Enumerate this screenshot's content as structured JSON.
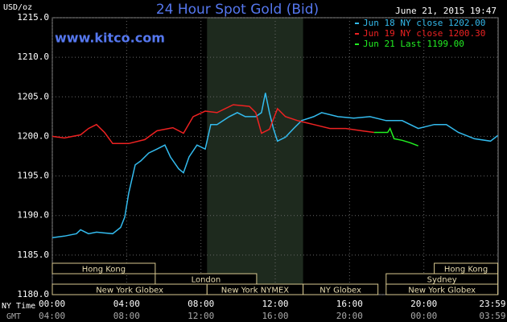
{
  "chart_data": {
    "type": "line",
    "title": "24 Hour Spot Gold (Bid)",
    "timestamp": "June 21, 2015 19:47",
    "watermark": "www.kitco.com",
    "y_label": "USD/oz",
    "x_label": "NY Time",
    "x2_label": "GMT",
    "xlim": [
      0,
      24
    ],
    "ylim": [
      1180,
      1215
    ],
    "xticks": [
      {
        "value": 0,
        "label": "00:00"
      },
      {
        "value": 4,
        "label": "04:00"
      },
      {
        "value": 8,
        "label": "08:00"
      },
      {
        "value": 12,
        "label": "12:00"
      },
      {
        "value": 16,
        "label": "16:00"
      },
      {
        "value": 20,
        "label": "20:00"
      },
      {
        "value": 23.98,
        "label": "23:59"
      }
    ],
    "gmt_labels": [
      "04:00",
      "08:00",
      "12:00",
      "16:00",
      "20:00",
      "00:00",
      "03:59"
    ],
    "yticks": [
      {
        "value": 1180,
        "label": "1180.0"
      },
      {
        "value": 1185,
        "label": "1185.0"
      },
      {
        "value": 1190,
        "label": "1190.0"
      },
      {
        "value": 1195,
        "label": "1195.0"
      },
      {
        "value": 1200,
        "label": "1200.0"
      },
      {
        "value": 1205,
        "label": "1205.0"
      },
      {
        "value": 1210,
        "label": "1210.0"
      },
      {
        "value": 1215,
        "label": "1215.0"
      }
    ],
    "grid": true,
    "shade": [
      8.33,
      13.5
    ],
    "sessions": [
      {
        "label": "Hong Kong",
        "start": 0,
        "end": 5.54,
        "row": 0
      },
      {
        "label": "Hong Kong",
        "start": 20.56,
        "end": 23.98,
        "row": 0
      },
      {
        "label": "London",
        "start": 5.54,
        "end": 11.0,
        "row": 1
      },
      {
        "label": "Sydney",
        "start": 17.97,
        "end": 23.98,
        "row": 1
      },
      {
        "label": "New York Globex",
        "start": 0,
        "end": 8.33,
        "row": 2
      },
      {
        "label": "New York NYMEX",
        "start": 8.33,
        "end": 13.5,
        "row": 2
      },
      {
        "label": "NY Globex",
        "start": 13.5,
        "end": 17.53,
        "row": 2
      },
      {
        "label": "New York Globex",
        "start": 17.97,
        "end": 23.98,
        "row": 2
      }
    ],
    "series": [
      {
        "name": "Jun 18 NY close 1202.00",
        "color": "#33bbee",
        "x": [
          0,
          0.65,
          1.3,
          1.52,
          1.95,
          2.38,
          3.25,
          3.68,
          3.9,
          4.11,
          4.46,
          4.76,
          5.19,
          5.63,
          6.06,
          6.36,
          6.8,
          7.06,
          7.36,
          7.79,
          8.23,
          8.53,
          8.87,
          9.52,
          9.96,
          10.39,
          10.95,
          11.26,
          11.47,
          11.69,
          11.9,
          12.12,
          12.55,
          12.99,
          13.42,
          14.07,
          14.5,
          15.37,
          16.23,
          17.1,
          17.97,
          18.83,
          19.7,
          20.56,
          21.21,
          21.86,
          22.73,
          23.59,
          23.98
        ],
        "values": [
          1187.2,
          1187.4,
          1187.7,
          1188.2,
          1187.7,
          1187.9,
          1187.7,
          1188.5,
          1189.8,
          1192.8,
          1196.4,
          1196.9,
          1197.9,
          1198.4,
          1198.9,
          1197.4,
          1195.9,
          1195.4,
          1197.4,
          1198.9,
          1198.4,
          1201.5,
          1201.5,
          1202.5,
          1203.0,
          1202.5,
          1202.5,
          1203.0,
          1205.5,
          1203.0,
          1201.0,
          1199.4,
          1199.9,
          1201.0,
          1202.0,
          1202.5,
          1203.0,
          1202.5,
          1202.3,
          1202.5,
          1202.0,
          1202.0,
          1201.0,
          1201.5,
          1201.5,
          1200.5,
          1199.7,
          1199.4,
          1200.1
        ]
      },
      {
        "name": "Jun 19 NY close 1200.30",
        "color": "#ee2222",
        "x": [
          0,
          0.65,
          1.52,
          1.95,
          2.38,
          2.81,
          3.25,
          4.11,
          4.98,
          5.63,
          6.49,
          7.06,
          7.58,
          8.23,
          8.87,
          9.74,
          10.61,
          10.95,
          11.26,
          11.69,
          12.12,
          12.55,
          13.2,
          14.07,
          14.94,
          15.8,
          16.67,
          17.32
        ],
        "values": [
          1200.0,
          1199.8,
          1200.2,
          1201.0,
          1201.5,
          1200.5,
          1199.1,
          1199.1,
          1199.6,
          1200.7,
          1201.1,
          1200.4,
          1202.5,
          1203.2,
          1203.0,
          1204.0,
          1203.8,
          1203.0,
          1200.4,
          1200.9,
          1203.5,
          1202.5,
          1202.0,
          1201.5,
          1201.0,
          1201.0,
          1200.7,
          1200.5
        ]
      },
      {
        "name": "Jun 21 Last 1199.00",
        "color": "#22ee22",
        "x": [
          17.32,
          18.05,
          18.18,
          18.4,
          18.83,
          19.26,
          19.7
        ],
        "values": [
          1200.5,
          1200.5,
          1201.0,
          1199.7,
          1199.5,
          1199.2,
          1198.8
        ]
      }
    ]
  }
}
